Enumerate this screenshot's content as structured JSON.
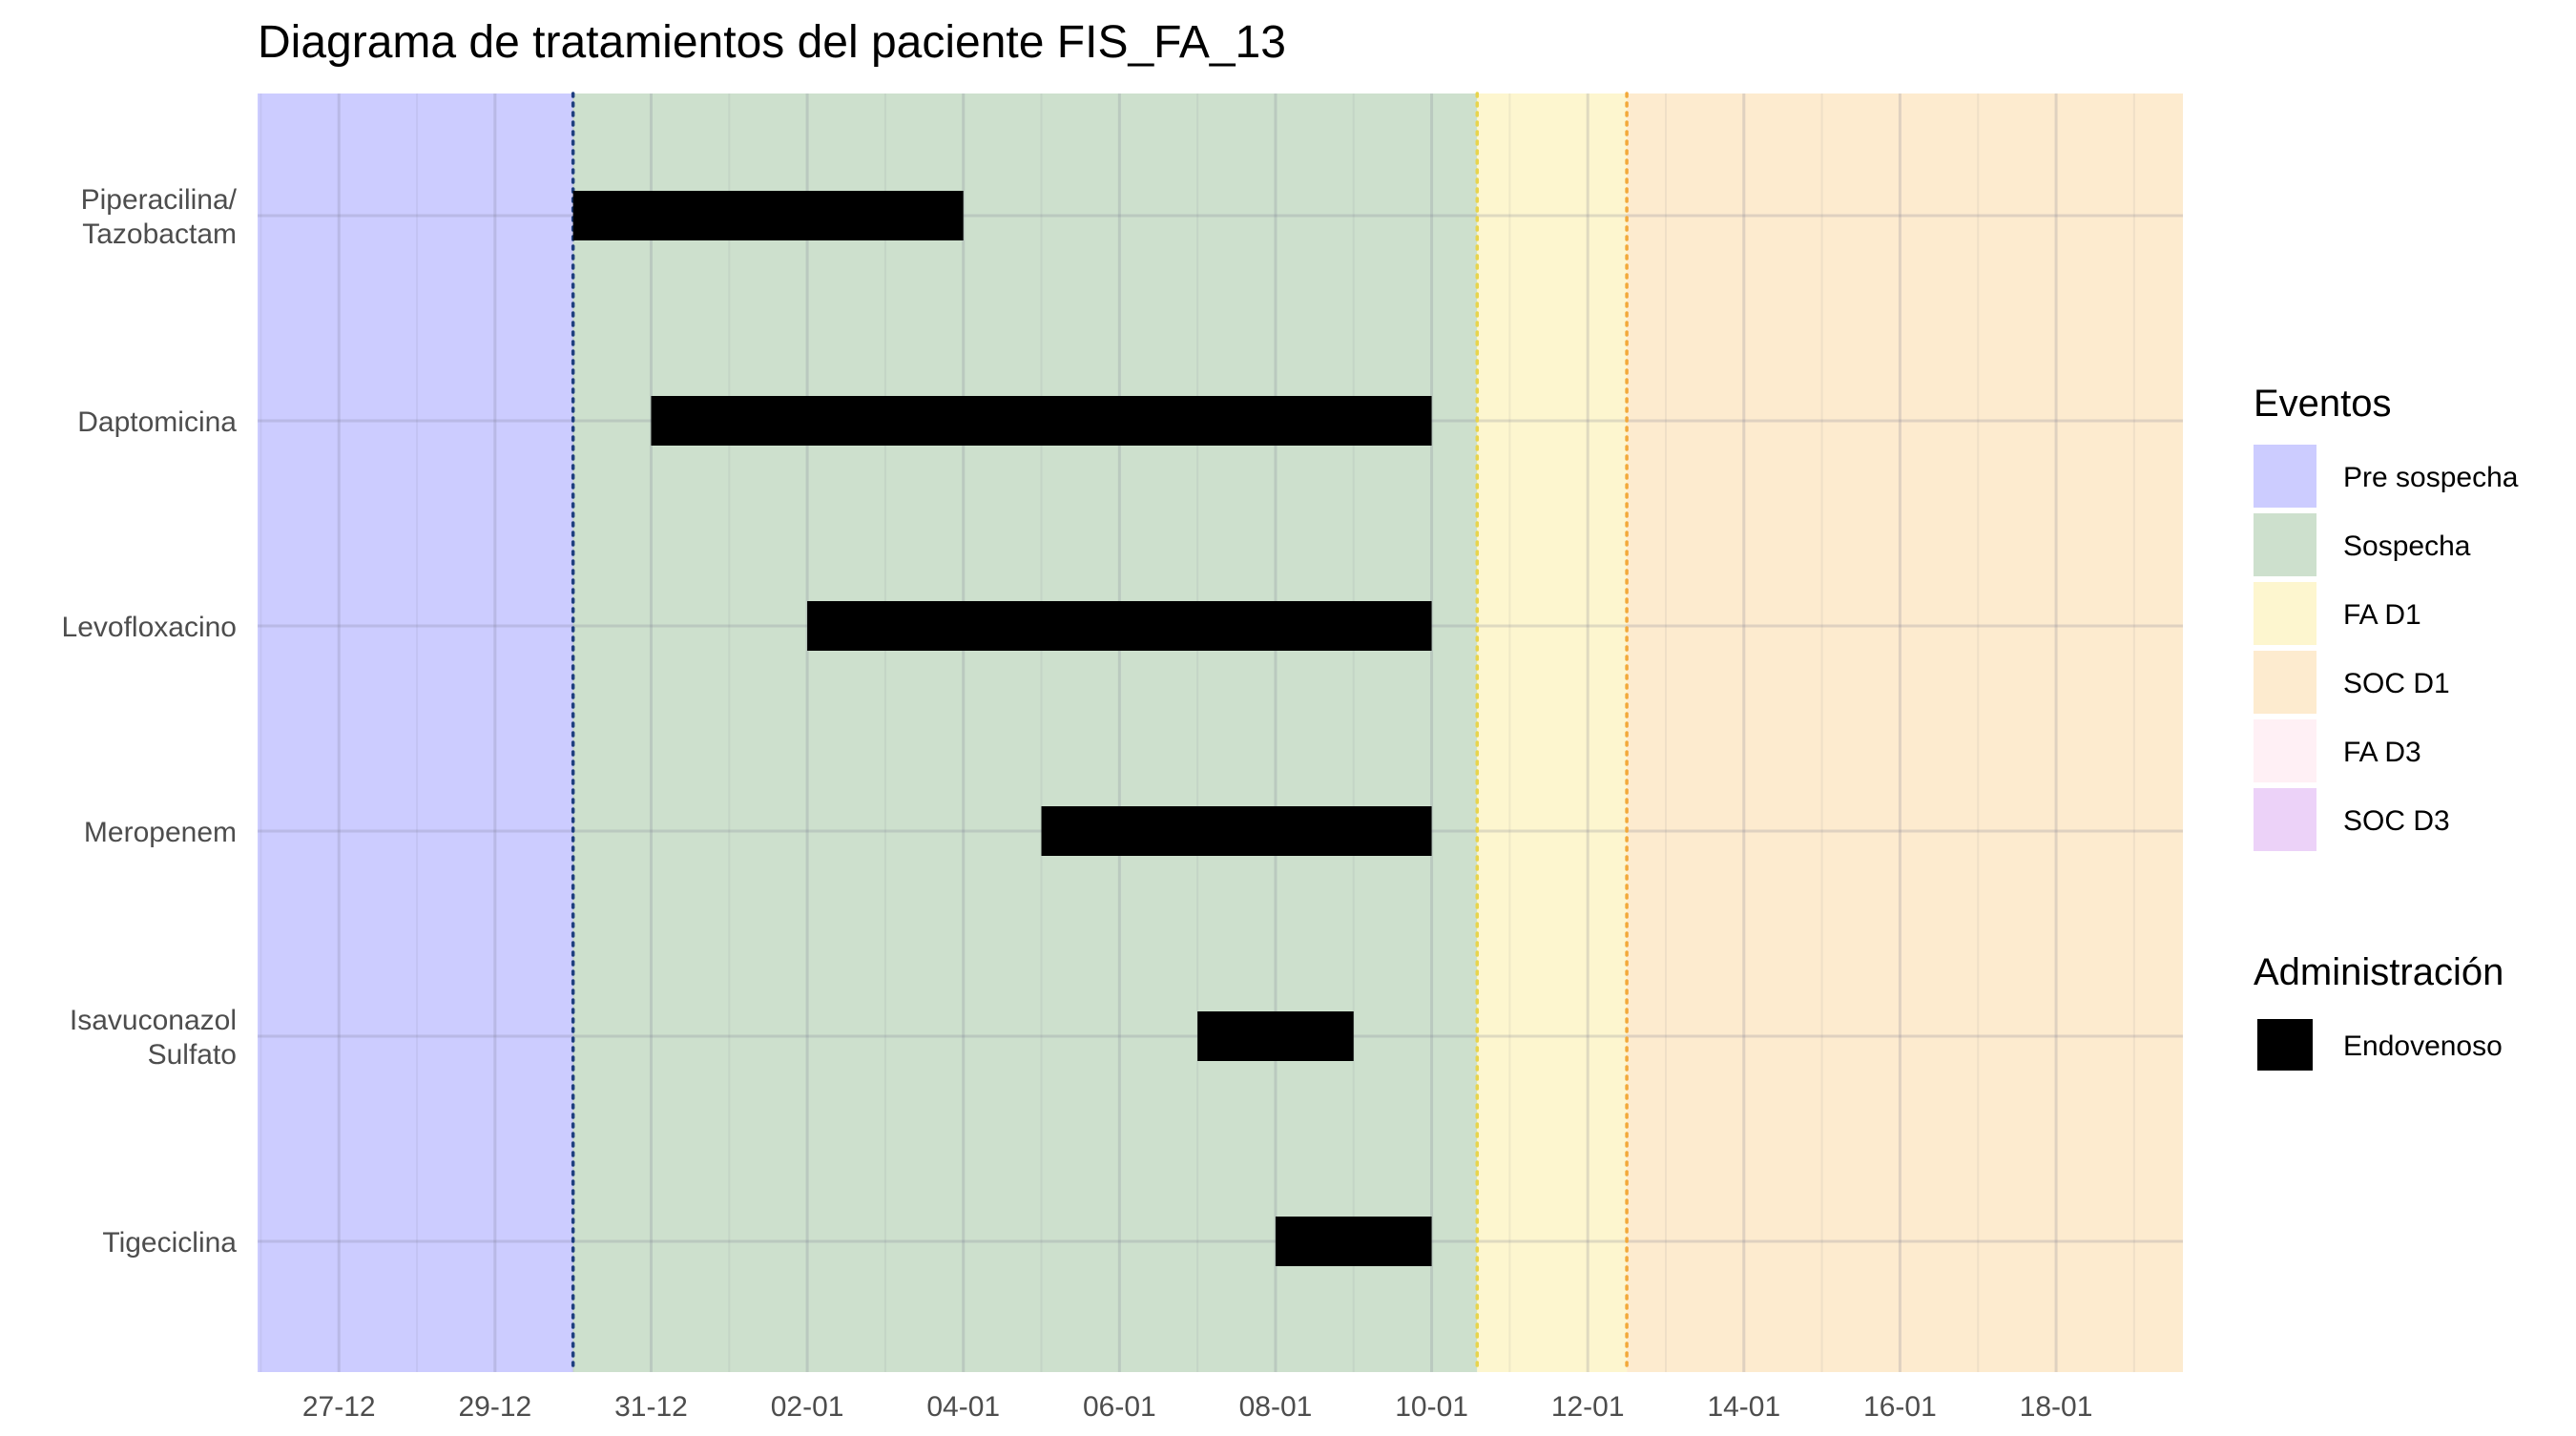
{
  "chart_data": {
    "type": "timeline",
    "title": "Diagrama de tratamientos del paciente FIS_FA_13",
    "xlabel": "",
    "ylabel": "",
    "date_axis": {
      "min": "2023-12-25T23:00",
      "max": "2024-01-19T15:00",
      "tick_labels": [
        "27-12",
        "29-12",
        "31-12",
        "02-01",
        "04-01",
        "06-01",
        "08-01",
        "10-01",
        "12-01",
        "14-01",
        "16-01",
        "18-01"
      ],
      "tick_dates": [
        "2023-12-27",
        "2023-12-29",
        "2023-12-31",
        "2024-01-02",
        "2024-01-04",
        "2024-01-06",
        "2024-01-08",
        "2024-01-10",
        "2024-01-12",
        "2024-01-14",
        "2024-01-16",
        "2024-01-18"
      ],
      "grid": true
    },
    "categories": [
      "Piperacilina/\nTazobactam",
      "Daptomicina",
      "Levofloxacino",
      "Meropenem",
      "Isavuconazol\nSulfato",
      "Tigeciclina"
    ],
    "treatments": [
      {
        "drug": "Piperacilina/\nTazobactam",
        "start": "2023-12-30",
        "end": "2024-01-04",
        "route": "Endovenoso"
      },
      {
        "drug": "Daptomicina",
        "start": "2023-12-31",
        "end": "2024-01-10",
        "route": "Endovenoso"
      },
      {
        "drug": "Levofloxacino",
        "start": "2024-01-02",
        "end": "2024-01-10",
        "route": "Endovenoso"
      },
      {
        "drug": "Meropenem",
        "start": "2024-01-05",
        "end": "2024-01-10",
        "route": "Endovenoso"
      },
      {
        "drug": "Isavuconazol\nSulfato",
        "start": "2024-01-07",
        "end": "2024-01-09",
        "route": "Endovenoso"
      },
      {
        "drug": "Tigeciclina",
        "start": "2024-01-08",
        "end": "2024-01-10",
        "route": "Endovenoso"
      }
    ],
    "event_periods": [
      {
        "event": "Pre sospecha",
        "start": "2023-12-25T23:00",
        "end": "2023-12-30"
      },
      {
        "event": "Sospecha",
        "start": "2023-12-30",
        "end": "2024-01-10T14:00"
      },
      {
        "event": "FA D1",
        "start": "2024-01-10T14:00",
        "end": "2024-01-12T12:00"
      },
      {
        "event": "SOC D1",
        "start": "2024-01-12T12:00",
        "end": "2024-01-19T15:00"
      }
    ],
    "boundary_lines": [
      {
        "date": "2023-12-30",
        "color": "#1f3f7f"
      },
      {
        "date": "2024-01-10T14:00",
        "color": "#e8d44d"
      },
      {
        "date": "2024-01-12T12:00",
        "color": "#f2a93b"
      }
    ],
    "legend": {
      "placement": "right",
      "eventos": {
        "title": "Eventos",
        "items": [
          {
            "label": "Pre sospecha",
            "color": "#ccccff"
          },
          {
            "label": "Sospecha",
            "color": "#cde0cd"
          },
          {
            "label": "FA D1",
            "color": "#fdf6cf"
          },
          {
            "label": "SOC D1",
            "color": "#fdebcf"
          },
          {
            "label": "FA D3",
            "color": "#fff0f5"
          },
          {
            "label": "SOC D3",
            "color": "#ecd2f8"
          }
        ]
      },
      "administracion": {
        "title": "Administración",
        "items": [
          {
            "label": "Endovenoso",
            "color": "#000000"
          }
        ]
      }
    }
  }
}
